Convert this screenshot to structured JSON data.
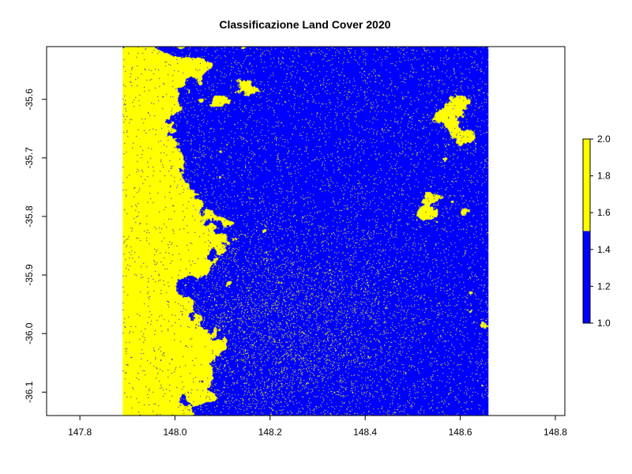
{
  "chart_data": {
    "type": "heatmap",
    "title": "Classificazione Land Cover 2020",
    "xlabel": "",
    "ylabel": "",
    "x_ticks": [
      "147.8",
      "148.0",
      "148.2",
      "148.4",
      "148.6",
      "148.8"
    ],
    "x_tick_values": [
      147.8,
      148.0,
      148.2,
      148.4,
      148.6,
      148.8
    ],
    "y_ticks": [
      "-35.6",
      "-35.7",
      "-35.8",
      "-35.9",
      "-36.0",
      "-36.1"
    ],
    "y_tick_values": [
      -35.6,
      -35.7,
      -35.8,
      -35.9,
      -36.0,
      -36.1
    ],
    "xlim": [
      147.73,
      148.82
    ],
    "ylim": [
      -36.14,
      -35.51
    ],
    "raster_extent": {
      "x": [
        147.89,
        148.66
      ],
      "y": [
        -36.14,
        -35.51
      ]
    },
    "classes": [
      {
        "value": 1,
        "color": "#0000ff"
      },
      {
        "value": 2,
        "color": "#ffff00"
      }
    ],
    "legend": {
      "placement": "right",
      "ticks": [
        "1.0",
        "1.2",
        "1.4",
        "1.6",
        "1.8",
        "2.0"
      ],
      "tick_values": [
        1.0,
        1.2,
        1.4,
        1.6,
        1.8,
        2.0
      ],
      "range": [
        1.0,
        2.0
      ],
      "break": 1.5,
      "colors": [
        "#0000ff",
        "#ffff00"
      ]
    },
    "grid": false
  }
}
